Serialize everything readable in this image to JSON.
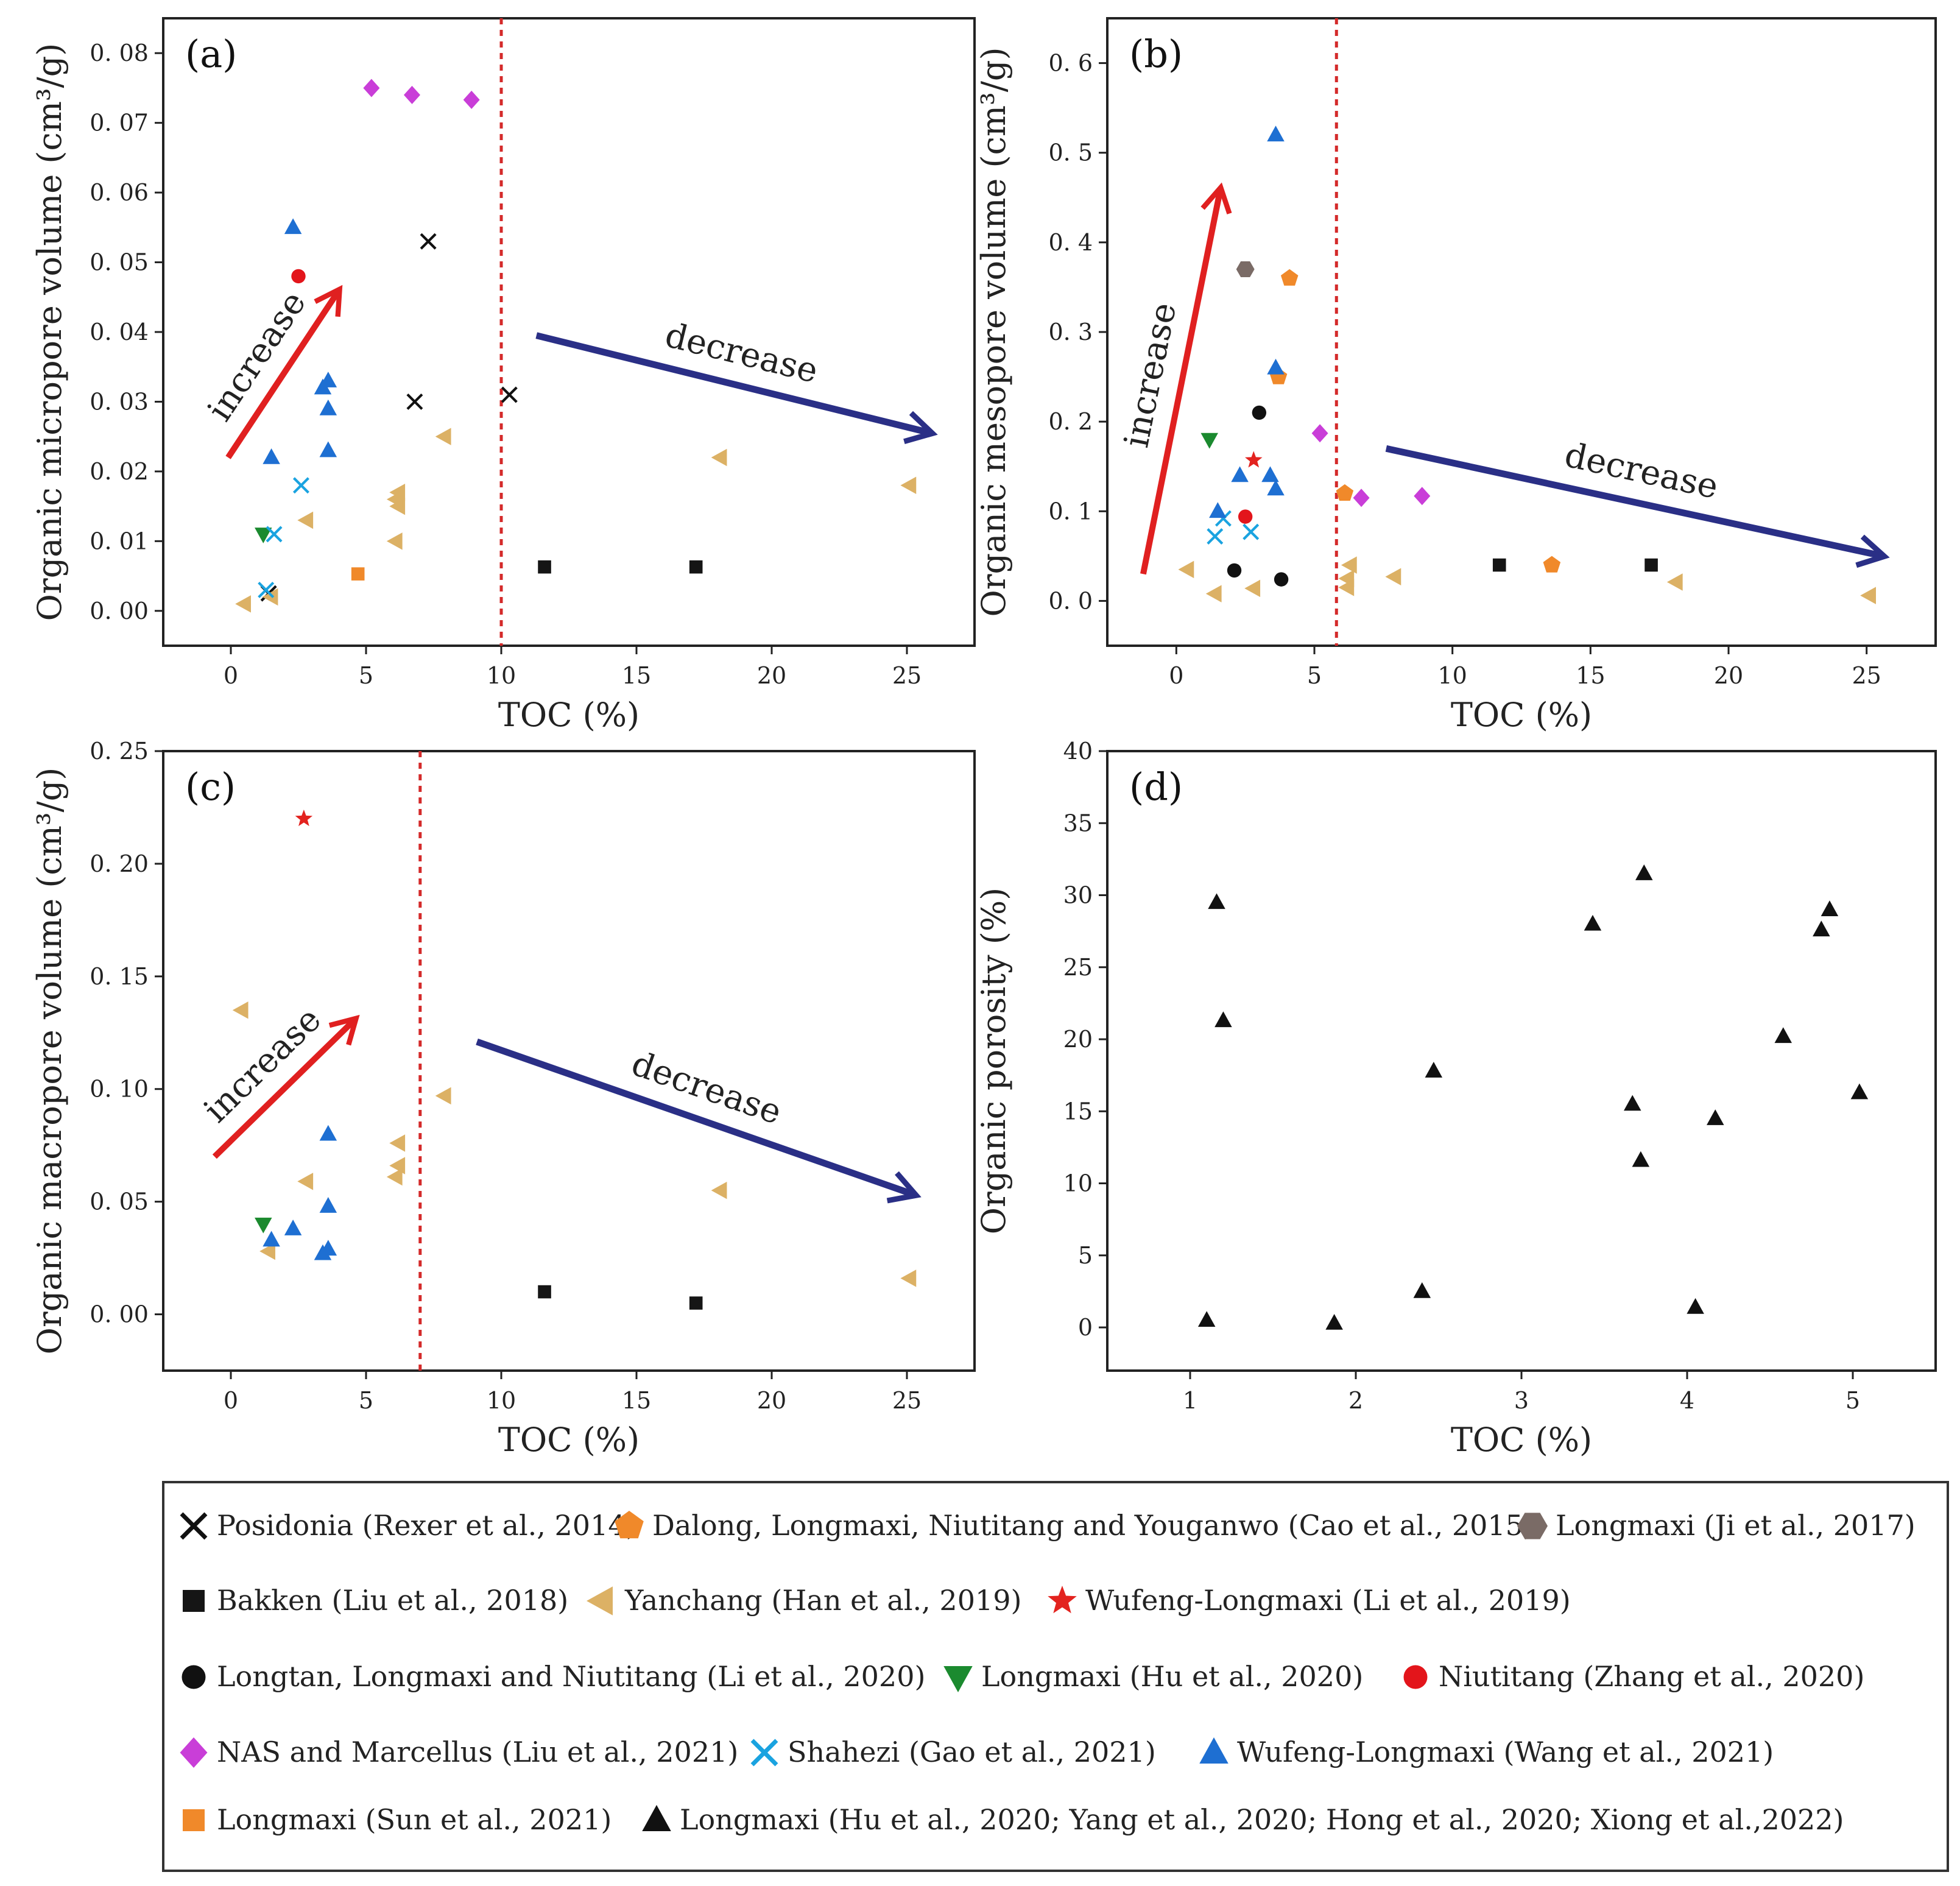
{
  "chart_data": [
    {
      "panel": "(a)",
      "type": "scatter",
      "xlabel": "TOC (%)",
      "ylabel": "Organic micropore volume (cm³/g)",
      "xlim": [
        -2.5,
        27.5
      ],
      "ylim": [
        -0.005,
        0.085
      ],
      "xticks": [
        0,
        5,
        10,
        15,
        20,
        25
      ],
      "yticks": [
        0.0,
        0.01,
        0.02,
        0.03,
        0.04,
        0.05,
        0.06,
        0.07,
        0.08
      ],
      "ytick_labels": [
        "0. 00",
        "0. 01",
        "0. 02",
        "0. 03",
        "0. 04",
        "0. 05",
        "0. 06",
        "0. 07",
        "0. 08"
      ],
      "divider_x": 10,
      "annotations": [
        {
          "text": "increase",
          "from": [
            -0.1,
            0.022
          ],
          "to": [
            4.0,
            0.046
          ],
          "color": "#e02020"
        },
        {
          "text": "decrease",
          "from": [
            11.3,
            0.0395
          ],
          "to": [
            25.9,
            0.0255
          ],
          "color": "#2a2f86"
        }
      ],
      "series": [
        {
          "legend_index": 0,
          "points": [
            [
              7.3,
              0.053
            ],
            [
              6.8,
              0.03
            ],
            [
              10.3,
              0.031
            ],
            [
              1.4,
              0.0025
            ]
          ]
        },
        {
          "legend_index": 3,
          "points": [
            [
              11.6,
              0.0063
            ],
            [
              17.2,
              0.0063
            ]
          ]
        },
        {
          "legend_index": 4,
          "points": [
            [
              0.5,
              0.001
            ],
            [
              1.5,
              0.002
            ],
            [
              2.8,
              0.013
            ],
            [
              6.1,
              0.01
            ],
            [
              6.2,
              0.015
            ],
            [
              6.1,
              0.016
            ],
            [
              6.2,
              0.017
            ],
            [
              7.9,
              0.025
            ],
            [
              18.1,
              0.022
            ],
            [
              25.1,
              0.018
            ]
          ]
        },
        {
          "legend_index": 7,
          "points": [
            [
              1.2,
              0.011
            ]
          ]
        },
        {
          "legend_index": 8,
          "points": [
            [
              2.5,
              0.048
            ]
          ]
        },
        {
          "legend_index": 9,
          "points": [
            [
              5.2,
              0.075
            ],
            [
              6.7,
              0.074
            ],
            [
              8.9,
              0.0733
            ]
          ]
        },
        {
          "legend_index": 10,
          "points": [
            [
              2.6,
              0.018
            ],
            [
              1.6,
              0.011
            ],
            [
              1.3,
              0.003
            ]
          ]
        },
        {
          "legend_index": 11,
          "points": [
            [
              2.3,
              0.055
            ],
            [
              3.4,
              0.032
            ],
            [
              3.6,
              0.033
            ],
            [
              3.6,
              0.029
            ],
            [
              3.6,
              0.023
            ],
            [
              1.5,
              0.022
            ]
          ]
        },
        {
          "legend_index": 12,
          "points": [
            [
              4.7,
              0.0053
            ]
          ]
        }
      ]
    },
    {
      "panel": "(b)",
      "type": "scatter",
      "xlabel": "TOC (%)",
      "ylabel": "Organic mesopore volume (cm³/g)",
      "xlim": [
        -2.5,
        27.5
      ],
      "ylim": [
        -0.05,
        0.65
      ],
      "xticks": [
        0,
        5,
        10,
        15,
        20,
        25
      ],
      "yticks": [
        0.0,
        0.1,
        0.2,
        0.3,
        0.4,
        0.5,
        0.6
      ],
      "ytick_labels": [
        "0. 0",
        "0. 1",
        "0. 2",
        "0. 3",
        "0. 4",
        "0. 5",
        "0. 6"
      ],
      "divider_x": 5.8,
      "annotations": [
        {
          "text": "increase",
          "from": [
            -1.2,
            0.03
          ],
          "to": [
            1.6,
            0.46
          ],
          "color": "#e02020"
        },
        {
          "text": "decrease",
          "from": [
            7.6,
            0.17
          ],
          "to": [
            25.6,
            0.05
          ],
          "color": "#2a2f86"
        }
      ],
      "series": [
        {
          "legend_index": 1,
          "points": [
            [
              4.1,
              0.36
            ],
            [
              3.7,
              0.25
            ],
            [
              6.1,
              0.12
            ],
            [
              13.6,
              0.04
            ]
          ]
        },
        {
          "legend_index": 2,
          "points": [
            [
              2.5,
              0.37
            ]
          ]
        },
        {
          "legend_index": 3,
          "points": [
            [
              11.7,
              0.04
            ],
            [
              17.2,
              0.04
            ]
          ]
        },
        {
          "legend_index": 4,
          "points": [
            [
              0.4,
              0.035
            ],
            [
              1.4,
              0.008
            ],
            [
              2.8,
              0.014
            ],
            [
              6.3,
              0.04
            ],
            [
              6.2,
              0.025
            ],
            [
              6.2,
              0.015
            ],
            [
              7.9,
              0.027
            ],
            [
              18.1,
              0.021
            ],
            [
              25.1,
              0.006
            ]
          ]
        },
        {
          "legend_index": 5,
          "points": [
            [
              2.8,
              0.157
            ]
          ]
        },
        {
          "legend_index": 6,
          "points": [
            [
              3.0,
              0.21
            ],
            [
              2.1,
              0.034
            ],
            [
              3.8,
              0.024
            ]
          ]
        },
        {
          "legend_index": 7,
          "points": [
            [
              1.2,
              0.18
            ]
          ]
        },
        {
          "legend_index": 8,
          "points": [
            [
              2.5,
              0.094
            ]
          ]
        },
        {
          "legend_index": 9,
          "points": [
            [
              5.2,
              0.187
            ],
            [
              6.7,
              0.115
            ],
            [
              8.9,
              0.117
            ]
          ]
        },
        {
          "legend_index": 10,
          "points": [
            [
              1.4,
              0.072
            ],
            [
              1.7,
              0.092
            ],
            [
              2.7,
              0.077
            ]
          ]
        },
        {
          "legend_index": 11,
          "points": [
            [
              3.6,
              0.52
            ],
            [
              3.6,
              0.26
            ],
            [
              2.3,
              0.14
            ],
            [
              3.4,
              0.14
            ],
            [
              3.6,
              0.125
            ],
            [
              1.5,
              0.1
            ]
          ]
        }
      ]
    },
    {
      "panel": "(c)",
      "type": "scatter",
      "xlabel": "TOC (%)",
      "ylabel": "Organic macropore volume (cm³/g)",
      "xlim": [
        -2.5,
        27.5
      ],
      "ylim": [
        -0.025,
        0.25
      ],
      "xticks": [
        0,
        5,
        10,
        15,
        20,
        25
      ],
      "yticks": [
        0.0,
        0.05,
        0.1,
        0.15,
        0.2,
        0.25
      ],
      "ytick_labels": [
        "0. 00",
        "0. 05",
        "0. 10",
        "0. 15",
        "0. 20",
        "0. 25"
      ],
      "divider_x": 7.0,
      "annotations": [
        {
          "text": "increase",
          "from": [
            -0.6,
            0.07
          ],
          "to": [
            4.6,
            0.131
          ],
          "color": "#e02020"
        },
        {
          "text": "decrease",
          "from": [
            9.1,
            0.121
          ],
          "to": [
            25.3,
            0.053
          ],
          "color": "#2a2f86"
        }
      ],
      "series": [
        {
          "legend_index": 3,
          "points": [
            [
              11.6,
              0.01
            ],
            [
              17.2,
              0.005
            ]
          ]
        },
        {
          "legend_index": 4,
          "points": [
            [
              0.4,
              0.135
            ],
            [
              1.4,
              0.028
            ],
            [
              2.8,
              0.059
            ],
            [
              6.2,
              0.076
            ],
            [
              6.2,
              0.066
            ],
            [
              6.1,
              0.061
            ],
            [
              7.9,
              0.097
            ],
            [
              18.1,
              0.055
            ],
            [
              25.1,
              0.016
            ]
          ]
        },
        {
          "legend_index": 5,
          "points": [
            [
              2.7,
              0.22
            ]
          ]
        },
        {
          "legend_index": 7,
          "points": [
            [
              1.2,
              0.04
            ]
          ]
        },
        {
          "legend_index": 11,
          "points": [
            [
              3.6,
              0.08
            ],
            [
              3.6,
              0.048
            ],
            [
              2.3,
              0.038
            ],
            [
              1.5,
              0.033
            ],
            [
              3.4,
              0.027
            ],
            [
              3.6,
              0.029
            ]
          ]
        }
      ]
    },
    {
      "panel": "(d)",
      "type": "scatter",
      "xlabel": "TOC (%)",
      "ylabel": "Organic porosity (%)",
      "xlim": [
        0.5,
        5.5
      ],
      "ylim": [
        -3,
        40
      ],
      "xticks": [
        1,
        2,
        3,
        4,
        5
      ],
      "yticks": [
        0,
        5,
        10,
        15,
        20,
        25,
        30,
        35,
        40
      ],
      "series": [
        {
          "legend_index": 13,
          "points": [
            [
              1.1,
              0.5
            ],
            [
              1.16,
              29.5
            ],
            [
              1.2,
              21.3
            ],
            [
              1.87,
              0.3
            ],
            [
              2.4,
              2.5
            ],
            [
              2.47,
              17.8
            ],
            [
              3.43,
              28.0
            ],
            [
              3.67,
              15.5
            ],
            [
              3.72,
              11.6
            ],
            [
              3.74,
              31.5
            ],
            [
              4.05,
              1.4
            ],
            [
              4.17,
              14.5
            ],
            [
              4.58,
              20.2
            ],
            [
              4.81,
              27.6
            ],
            [
              4.86,
              29.0
            ],
            [
              5.04,
              16.3
            ]
          ]
        }
      ]
    }
  ],
  "legend": [
    {
      "label": "Posidonia (Rexer et al., 2014)",
      "marker": "x",
      "color": "#111111"
    },
    {
      "label": "Dalong, Longmaxi, Niutitang and Youganwo (Cao et al., 2015)",
      "marker": "pentagon",
      "color": "#f0892a"
    },
    {
      "label": "Longmaxi (Ji et al., 2017)",
      "marker": "hexagon",
      "color": "#7a6b66"
    },
    {
      "label": "Bakken (Liu et al., 2018)",
      "marker": "square",
      "color": "#151515"
    },
    {
      "label": "Yanchang (Han et al., 2019)",
      "marker": "triangle-left",
      "color": "#dcb165"
    },
    {
      "label": "Wufeng-Longmaxi (Li et al., 2019)",
      "marker": "star",
      "color": "#e3231f"
    },
    {
      "label": "Longtan, Longmaxi and Niutitang (Li et al., 2020)",
      "marker": "circle",
      "color": "#111111"
    },
    {
      "label": "Longmaxi (Hu et al., 2020)",
      "marker": "triangle-down",
      "color": "#1b8a2f"
    },
    {
      "label": "Niutitang (Zhang et al., 2020)",
      "marker": "circle",
      "color": "#e3151b"
    },
    {
      "label": "NAS and Marcellus (Liu et al., 2021)",
      "marker": "diamond",
      "color": "#c93ed8"
    },
    {
      "label": "Shahezi (Gao et al., 2021)",
      "marker": "x",
      "color": "#1aa3e0"
    },
    {
      "label": "Wufeng-Longmaxi (Wang et al., 2021)",
      "marker": "triangle-up",
      "color": "#1e6fd2"
    },
    {
      "label": "Longmaxi (Sun et al., 2021)",
      "marker": "square",
      "color": "#f0892a"
    },
    {
      "label": "Longmaxi (Hu et al., 2020; Yang et al., 2020; Hong et al., 2020; Xiong et al.,2022)",
      "marker": "triangle-up",
      "color": "#111111"
    }
  ]
}
